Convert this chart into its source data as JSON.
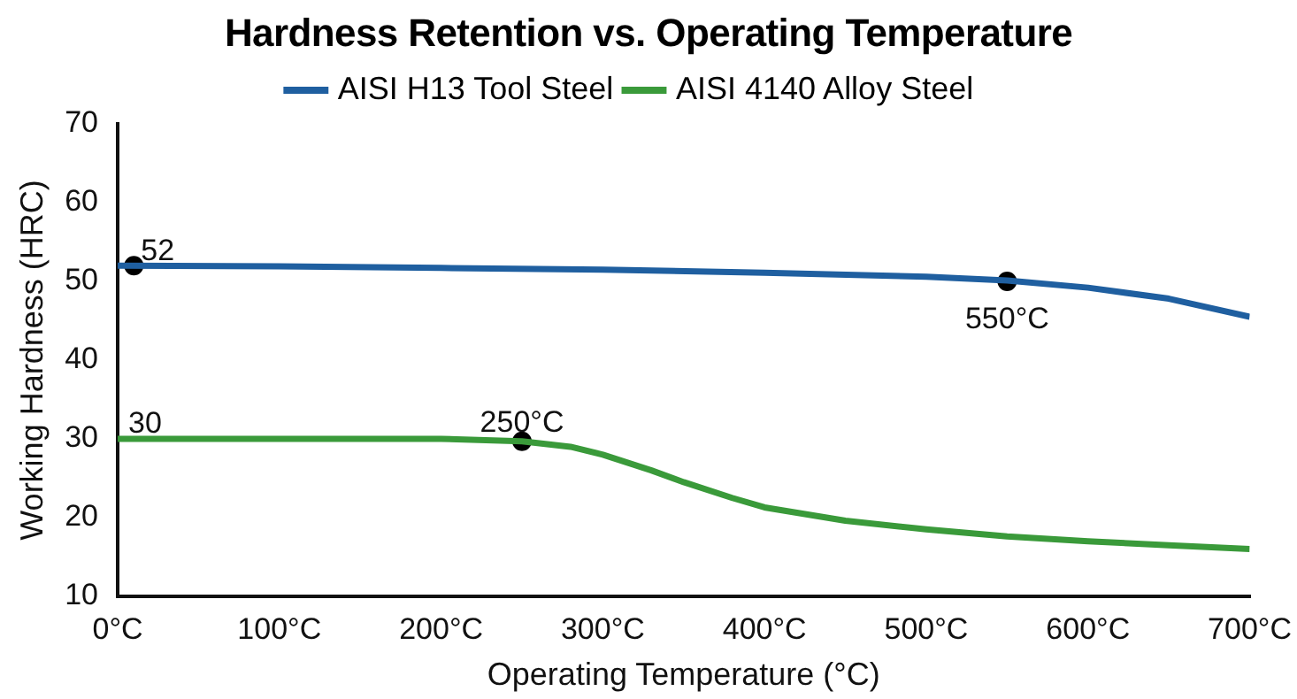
{
  "chart_data": {
    "type": "line",
    "title": "Hardness Retention vs. Operating Temperature",
    "xlabel": "Operating Temperature (°C)",
    "ylabel": "Working Hardness (HRC)",
    "series": [
      {
        "name": "AISI H13 Tool Steel",
        "color": "#1f5fa0",
        "x": [
          0,
          100,
          200,
          300,
          400,
          500,
          550,
          600,
          650,
          700
        ],
        "values": [
          52,
          51.9,
          51.7,
          51.5,
          51.1,
          50.6,
          50.1,
          49.2,
          47.8,
          45.5
        ]
      },
      {
        "name": "AISI 4140 Alloy Steel",
        "color": "#3a9a3a",
        "x": [
          0,
          100,
          200,
          250,
          280,
          300,
          330,
          350,
          380,
          400,
          450,
          500,
          550,
          600,
          650,
          700
        ],
        "values": [
          30,
          30,
          30,
          29.7,
          29,
          28,
          26,
          24.5,
          22.5,
          21.3,
          19.6,
          18.5,
          17.6,
          17,
          16.5,
          16
        ]
      },
      {
        "type": "scatter",
        "marker": "circle",
        "color": "#000000",
        "x": [
          10,
          550,
          250
        ],
        "values": [
          52,
          50,
          29.7
        ]
      }
    ],
    "annotations": [
      {
        "text": "52",
        "x": 10,
        "y": 52
      },
      {
        "text": "550°C",
        "x": 550,
        "y": 50
      },
      {
        "text": "30",
        "x": 0,
        "y": 30
      },
      {
        "text": "250°C",
        "x": 250,
        "y": 29.7
      }
    ],
    "xlim": [
      0,
      700
    ],
    "xticks": [
      {
        "value": 0,
        "label": "0°C"
      },
      {
        "value": 100,
        "label": "100°C"
      },
      {
        "value": 200,
        "label": "200°C"
      },
      {
        "value": 300,
        "label": "300°C"
      },
      {
        "value": 400,
        "label": "400°C"
      },
      {
        "value": 500,
        "label": "500°C"
      },
      {
        "value": 600,
        "label": "600°C"
      },
      {
        "value": 700,
        "label": "700°C"
      }
    ],
    "ylim": [
      10,
      70
    ],
    "yticks": [
      10,
      20,
      30,
      40,
      50,
      60,
      70
    ],
    "grid": false,
    "legend": "top",
    "line_style": "solid"
  }
}
